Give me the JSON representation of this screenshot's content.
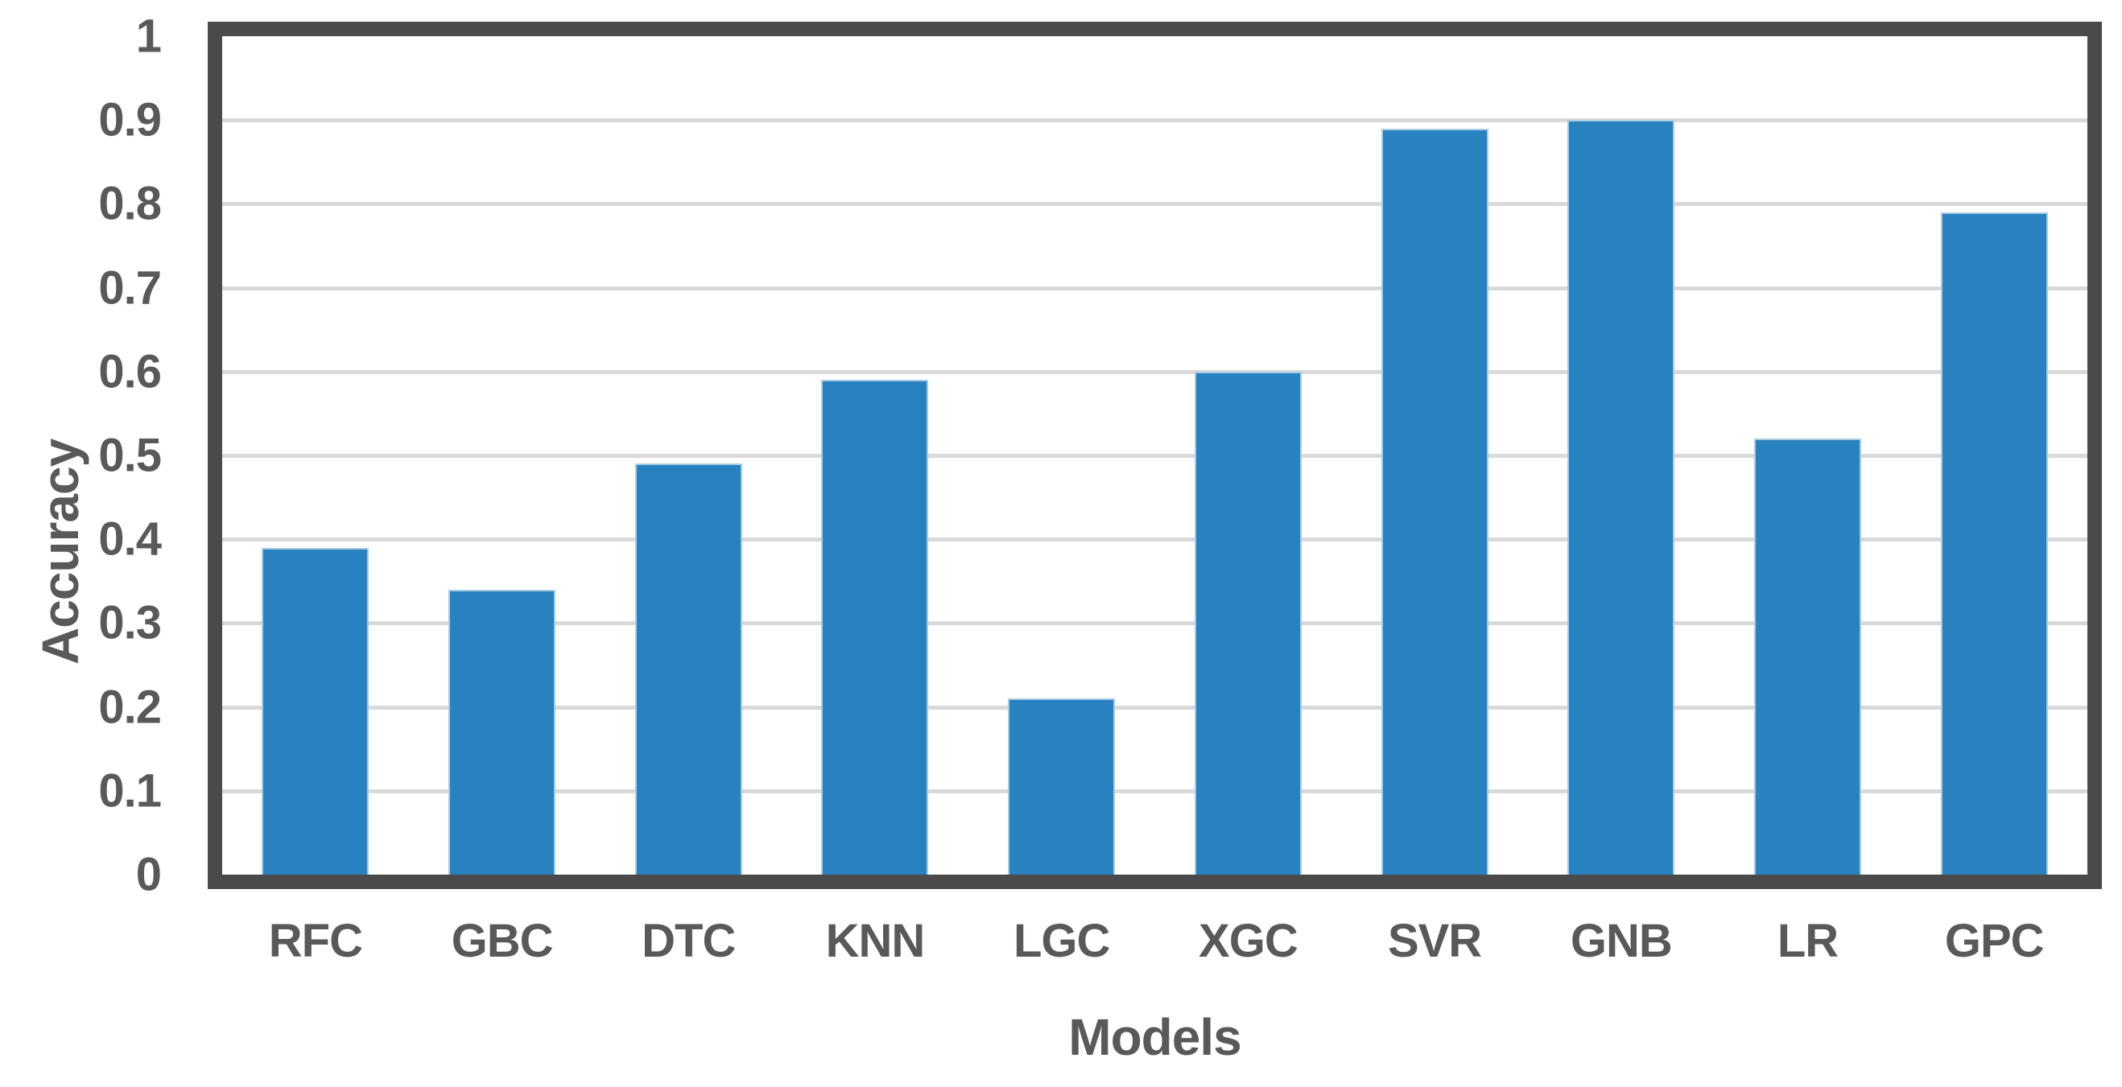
{
  "chart_data": {
    "type": "bar",
    "title": "",
    "categories": [
      "RFC",
      "GBC",
      "DTC",
      "KNN",
      "LGC",
      "XGC",
      "SVR",
      "GNB",
      "LR",
      "GPC"
    ],
    "values": [
      0.39,
      0.34,
      0.49,
      0.59,
      0.21,
      0.6,
      0.89,
      0.9,
      0.52,
      0.79
    ],
    "series_name": "Accuracy",
    "xlabel": "Models",
    "ylabel": "Accuracy",
    "ylim": [
      0,
      1
    ],
    "yticks": [
      1,
      0.9,
      0.8,
      0.7,
      0.6,
      0.5,
      0.4,
      0.3,
      0.2,
      0.1,
      0
    ],
    "ytick_labels": [
      "1",
      "0.9",
      "0.8",
      "0.7",
      "0.6",
      "0.5",
      "0.4",
      "0.3",
      "0.2",
      "0.1",
      "0"
    ],
    "grid": "horizontal",
    "legend": "none",
    "colors": {
      "bar": "#2982C0",
      "bar_edge": "#A8CBE4",
      "frame_border": "#4A4A4A",
      "gridline": "#D9D9D9",
      "text": "#595959",
      "background": "#FFFFFF"
    }
  }
}
